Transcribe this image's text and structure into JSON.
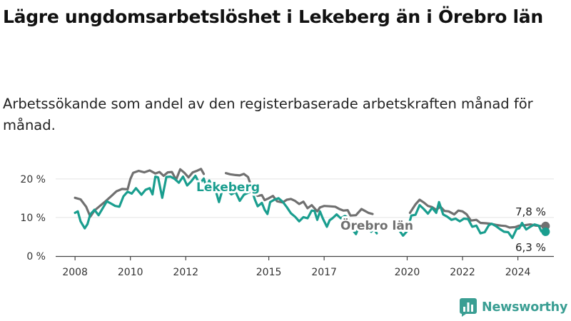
{
  "title": "Lägre ungdomsarbetslöshet i Lekeberg än i Örebro län",
  "subtitle": "Arbetssökande som andel av den registerbaserade arbetskraften månad för månad.",
  "brand": "Newsworthy",
  "colors": {
    "lekeberg": "#1a9e8f",
    "orebro": "#707070",
    "axis": "#444444",
    "grid": "#e4e4e4",
    "brand": "#3a9e93"
  },
  "icons": {
    "brand_logo": "bar-chart-icon"
  },
  "chart_data": {
    "type": "line",
    "xlim": [
      2007.3,
      2025.3
    ],
    "ylim": [
      0,
      22
    ],
    "y_ticks": [
      0,
      10,
      20
    ],
    "y_tick_labels": [
      "0 %",
      "10 %",
      "20 %"
    ],
    "x_ticks": [
      2008,
      2010,
      2012,
      2015,
      2017,
      2020,
      2022,
      2024
    ],
    "x_tick_labels": [
      "2008",
      "2010",
      "2012",
      "2015",
      "2017",
      "2020",
      "2022",
      "2024"
    ],
    "grid": "horizontal",
    "end_labels": [
      "7,8 %",
      "6,3 %"
    ],
    "series": [
      {
        "name": "Örebro län",
        "color": "#707070",
        "values": [
          [
            2008.0,
            15.1
          ],
          [
            2008.2,
            14.7
          ],
          [
            2008.4,
            12.8
          ],
          [
            2008.55,
            10.2
          ],
          [
            2008.7,
            11.8
          ],
          [
            2008.9,
            13.0
          ],
          [
            2009.1,
            14.2
          ],
          [
            2009.3,
            15.5
          ],
          [
            2009.5,
            16.8
          ],
          [
            2009.7,
            17.4
          ],
          [
            2009.9,
            17.3
          ],
          [
            2010.0,
            20.0
          ],
          [
            2010.1,
            21.6
          ],
          [
            2010.3,
            22.1
          ],
          [
            2010.5,
            21.7
          ],
          [
            2010.7,
            22.2
          ],
          [
            2010.9,
            21.4
          ],
          [
            2011.05,
            21.8
          ],
          [
            2011.2,
            20.8
          ],
          [
            2011.35,
            21.7
          ],
          [
            2011.5,
            21.8
          ],
          [
            2011.65,
            19.8
          ],
          [
            2011.8,
            22.5
          ],
          [
            2011.95,
            21.6
          ],
          [
            2012.1,
            20.4
          ],
          [
            2012.25,
            21.7
          ],
          [
            2012.4,
            22.1
          ],
          [
            2012.55,
            22.6
          ],
          [
            2012.65,
            21.3
          ],
          [
            2013.45,
            21.5
          ],
          [
            2013.6,
            21.2
          ],
          [
            2013.8,
            21.0
          ],
          [
            2013.95,
            20.9
          ],
          [
            2014.1,
            21.3
          ],
          [
            2014.25,
            20.5
          ],
          [
            2014.45,
            16.3
          ],
          [
            2014.6,
            15.6
          ],
          [
            2014.75,
            15.8
          ],
          [
            2014.85,
            14.5
          ],
          [
            2015.0,
            15.0
          ],
          [
            2015.15,
            15.6
          ],
          [
            2015.3,
            14.2
          ],
          [
            2015.5,
            13.9
          ],
          [
            2015.65,
            14.6
          ],
          [
            2015.8,
            14.8
          ],
          [
            2015.95,
            14.3
          ],
          [
            2016.1,
            13.5
          ],
          [
            2016.25,
            14.1
          ],
          [
            2016.4,
            12.4
          ],
          [
            2016.55,
            13.2
          ],
          [
            2016.75,
            11.6
          ],
          [
            2016.85,
            12.6
          ],
          [
            2017.0,
            13.0
          ],
          [
            2017.2,
            12.9
          ],
          [
            2017.4,
            12.8
          ],
          [
            2017.55,
            12.2
          ],
          [
            2017.7,
            11.8
          ],
          [
            2017.85,
            11.9
          ],
          [
            2017.95,
            10.5
          ],
          [
            2018.15,
            10.6
          ],
          [
            2018.35,
            12.2
          ],
          [
            2018.45,
            11.8
          ],
          [
            2018.6,
            11.2
          ],
          [
            2018.75,
            10.9
          ],
          [
            2020.1,
            11.2
          ],
          [
            2020.3,
            13.4
          ],
          [
            2020.45,
            14.6
          ],
          [
            2020.6,
            13.9
          ],
          [
            2020.75,
            13.0
          ],
          [
            2020.9,
            12.7
          ],
          [
            2021.05,
            12.0
          ],
          [
            2021.2,
            12.8
          ],
          [
            2021.35,
            11.7
          ],
          [
            2021.5,
            11.6
          ],
          [
            2021.7,
            10.8
          ],
          [
            2021.85,
            11.8
          ],
          [
            2022.0,
            11.6
          ],
          [
            2022.15,
            10.8
          ],
          [
            2022.3,
            9.2
          ],
          [
            2022.5,
            9.4
          ],
          [
            2022.65,
            8.6
          ],
          [
            2022.85,
            8.5
          ],
          [
            2023.0,
            8.4
          ],
          [
            2023.2,
            8.1
          ],
          [
            2023.4,
            7.9
          ],
          [
            2023.55,
            7.8
          ],
          [
            2023.7,
            7.4
          ],
          [
            2023.9,
            7.5
          ],
          [
            2024.05,
            7.9
          ],
          [
            2024.25,
            8.0
          ],
          [
            2024.45,
            8.2
          ],
          [
            2024.65,
            7.9
          ],
          [
            2024.85,
            7.8
          ],
          [
            2025.0,
            7.8
          ]
        ]
      },
      {
        "name": "Lekeberg",
        "color": "#1a9e8f",
        "values": [
          [
            2008.0,
            11.2
          ],
          [
            2008.1,
            11.6
          ],
          [
            2008.2,
            9.0
          ],
          [
            2008.35,
            7.2
          ],
          [
            2008.45,
            8.3
          ],
          [
            2008.55,
            10.8
          ],
          [
            2008.7,
            12.0
          ],
          [
            2008.85,
            10.6
          ],
          [
            2009.0,
            12.4
          ],
          [
            2009.15,
            14.2
          ],
          [
            2009.3,
            13.6
          ],
          [
            2009.45,
            13.0
          ],
          [
            2009.6,
            12.8
          ],
          [
            2009.75,
            15.5
          ],
          [
            2009.9,
            16.7
          ],
          [
            2010.05,
            16.2
          ],
          [
            2010.2,
            17.6
          ],
          [
            2010.4,
            15.9
          ],
          [
            2010.55,
            17.2
          ],
          [
            2010.7,
            17.6
          ],
          [
            2010.8,
            16.0
          ],
          [
            2010.9,
            20.6
          ],
          [
            2011.0,
            20.4
          ],
          [
            2011.15,
            15.1
          ],
          [
            2011.3,
            20.5
          ],
          [
            2011.45,
            20.6
          ],
          [
            2011.6,
            20.0
          ],
          [
            2011.75,
            19.0
          ],
          [
            2011.9,
            20.6
          ],
          [
            2012.05,
            18.3
          ],
          [
            2012.2,
            19.4
          ],
          [
            2012.35,
            20.8
          ],
          [
            2012.5,
            18.7
          ],
          [
            2012.65,
            20.1
          ],
          [
            2012.75,
            17.8
          ],
          [
            2012.85,
            19.6
          ],
          [
            2013.0,
            17.4
          ],
          [
            2013.1,
            16.5
          ],
          [
            2013.2,
            14.0
          ],
          [
            2013.35,
            17.8
          ],
          [
            2013.5,
            17.0
          ],
          [
            2013.65,
            16.0
          ],
          [
            2013.8,
            16.6
          ],
          [
            2013.95,
            14.3
          ],
          [
            2014.1,
            15.9
          ],
          [
            2014.25,
            16.4
          ],
          [
            2014.4,
            16.8
          ],
          [
            2014.5,
            14.6
          ],
          [
            2014.6,
            12.9
          ],
          [
            2014.75,
            13.8
          ],
          [
            2014.85,
            12.0
          ],
          [
            2014.95,
            10.9
          ],
          [
            2015.05,
            14.0
          ],
          [
            2015.2,
            14.6
          ],
          [
            2015.35,
            15.0
          ],
          [
            2015.5,
            14.1
          ],
          [
            2015.65,
            12.7
          ],
          [
            2015.8,
            11.1
          ],
          [
            2015.95,
            10.2
          ],
          [
            2016.1,
            9.0
          ],
          [
            2016.25,
            10.1
          ],
          [
            2016.4,
            9.8
          ],
          [
            2016.55,
            11.8
          ],
          [
            2016.65,
            11.7
          ],
          [
            2016.75,
            9.4
          ],
          [
            2016.85,
            11.6
          ],
          [
            2016.95,
            9.8
          ],
          [
            2017.1,
            7.6
          ],
          [
            2017.2,
            9.3
          ],
          [
            2017.3,
            9.8
          ],
          [
            2017.45,
            10.8
          ],
          [
            2017.6,
            9.8
          ],
          [
            2017.75,
            10.4
          ],
          [
            2017.85,
            10.0
          ],
          [
            2017.95,
            8.4
          ],
          [
            2018.05,
            6.6
          ],
          [
            2018.15,
            5.7
          ],
          [
            2018.25,
            7.5
          ],
          [
            2018.35,
            6.8
          ],
          [
            2018.5,
            7.8
          ],
          [
            2018.6,
            8.3
          ],
          [
            2018.7,
            6.3
          ],
          [
            2018.8,
            7.1
          ],
          [
            2018.9,
            5.9
          ],
          [
            2019.7,
            6.8
          ],
          [
            2019.85,
            5.3
          ],
          [
            2020.0,
            6.5
          ],
          [
            2020.15,
            10.5
          ],
          [
            2020.3,
            10.7
          ],
          [
            2020.45,
            13.2
          ],
          [
            2020.6,
            12.2
          ],
          [
            2020.75,
            11.0
          ],
          [
            2020.9,
            12.5
          ],
          [
            2021.05,
            11.2
          ],
          [
            2021.15,
            14.0
          ],
          [
            2021.3,
            10.8
          ],
          [
            2021.45,
            10.2
          ],
          [
            2021.6,
            9.4
          ],
          [
            2021.75,
            9.7
          ],
          [
            2021.9,
            9.0
          ],
          [
            2022.05,
            9.7
          ],
          [
            2022.2,
            9.6
          ],
          [
            2022.35,
            7.6
          ],
          [
            2022.5,
            7.9
          ],
          [
            2022.65,
            5.9
          ],
          [
            2022.8,
            6.2
          ],
          [
            2022.95,
            8.0
          ],
          [
            2023.05,
            8.4
          ],
          [
            2023.2,
            7.8
          ],
          [
            2023.35,
            7.0
          ],
          [
            2023.5,
            6.3
          ],
          [
            2023.65,
            6.2
          ],
          [
            2023.8,
            4.7
          ],
          [
            2023.95,
            7.0
          ],
          [
            2024.05,
            7.2
          ],
          [
            2024.15,
            8.6
          ],
          [
            2024.3,
            6.9
          ],
          [
            2024.45,
            7.6
          ],
          [
            2024.6,
            8.2
          ],
          [
            2024.75,
            7.9
          ],
          [
            2024.85,
            6.4
          ],
          [
            2025.0,
            6.3
          ]
        ]
      }
    ]
  }
}
